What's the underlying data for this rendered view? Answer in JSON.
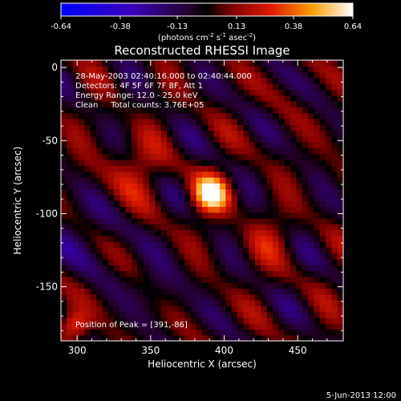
{
  "chart_data": {
    "type": "heatmap",
    "title": "Reconstructed RHESSI Image",
    "xlabel": "Heliocentric X (arcsec)",
    "ylabel": "Heliocentric Y (arcsec)",
    "xlim": [
      289,
      481
    ],
    "ylim": [
      -187,
      5
    ],
    "xticks": [
      300,
      350,
      400,
      450
    ],
    "yticks": [
      0,
      -50,
      -100,
      -150
    ],
    "colorbar": {
      "min": -0.64,
      "max": 0.64,
      "ticks": [
        "-0.64",
        "-0.38",
        "-0.13",
        "0.13",
        "0.38",
        "0.64"
      ],
      "unit_prefix": "(photons cm",
      "unit_exp1": "-2",
      "unit_mid": " s",
      "unit_exp2": "-1",
      "unit_mid2": " asec",
      "unit_exp3": "-2",
      "unit_suffix": ")"
    },
    "annotations": [
      "28-May-2003 02:40:16.000 to 02:40:44.000",
      "Detectors: 4F 5F 6F 7F 8F, Att 1",
      "Energy Range: 12.0 - 25.0 keV",
      "Clean     Total counts: 3.76E+05"
    ],
    "peak_label": "Position of Peak = [391,-86]",
    "peak": {
      "x": 391,
      "y": -86
    },
    "footer_date": "5-Jun-2013 12:00",
    "grid": false
  }
}
